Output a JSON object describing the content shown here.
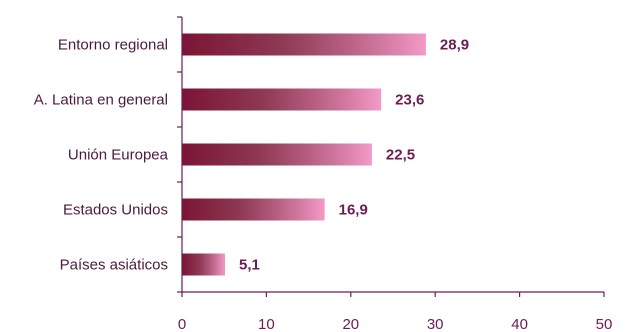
{
  "chart_data": {
    "type": "bar",
    "orientation": "horizontal",
    "categories": [
      "Entorno regional",
      "A. Latina en general",
      "Unión Europea",
      "Estados Unidos",
      "Países asiáticos"
    ],
    "values": [
      28.9,
      23.6,
      22.5,
      16.9,
      5.1
    ],
    "value_labels": [
      "28,9",
      "23,6",
      "22,5",
      "16,9",
      "5,1"
    ],
    "xlim": [
      0,
      50
    ],
    "xticks": [
      0,
      10,
      20,
      30,
      40,
      50
    ],
    "xtick_labels": [
      "0",
      "10",
      "20",
      "30",
      "40",
      "50"
    ],
    "grid": false,
    "legend": "none",
    "colors": {
      "bar_dark": "#7a1534",
      "bar_light": "#f49ac8",
      "axis": "#6b1d55",
      "value_text": "#6b1d55",
      "category_text": "#4a1b3c"
    }
  }
}
